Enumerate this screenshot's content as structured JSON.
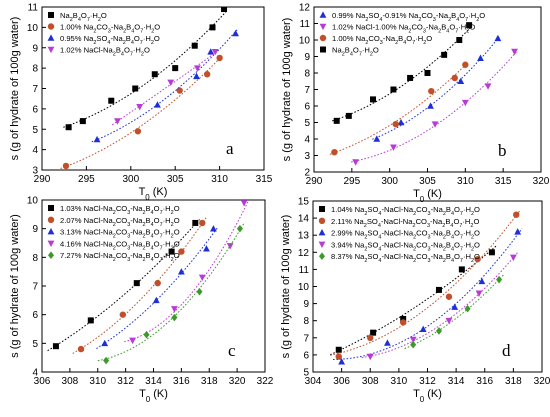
{
  "chart_data": [
    {
      "type": "scatter",
      "panel": "a",
      "xlabel": "T₀ (K)",
      "ylabel": "s (g of hydrate of 100g water)",
      "xlim": [
        290,
        315
      ],
      "ylim": [
        3,
        11
      ],
      "xticks": [
        290,
        295,
        300,
        305,
        310,
        315
      ],
      "yticks": [
        3,
        4,
        5,
        6,
        7,
        8,
        9,
        10,
        11
      ],
      "legend_position": "top-left",
      "series": [
        {
          "name": "Na₂B₄O₇·H₂O",
          "marker": "square",
          "color": "#000000",
          "x": [
            293.0,
            294.6,
            297.8,
            300.5,
            302.7,
            305.0,
            307.2,
            309.2,
            310.5
          ],
          "y": [
            5.1,
            5.4,
            6.4,
            7.0,
            7.7,
            8.0,
            9.1,
            10.0,
            10.9
          ]
        },
        {
          "name": "1.00% Na₂CO₃-Na₂B₄O₇·H₂O",
          "marker": "circle",
          "color": "#c0502a",
          "x": [
            292.7,
            300.8,
            305.5,
            308.6,
            310.0
          ],
          "y": [
            3.2,
            4.9,
            6.9,
            7.7,
            8.5
          ]
        },
        {
          "name": "0.95% Na₂SO₄-Na₂B₄O₇·H₂O",
          "marker": "triangle-up",
          "color": "#1f2fd6",
          "x": [
            296.2,
            303.0,
            307.4,
            309.0,
            311.8
          ],
          "y": [
            4.5,
            6.2,
            7.6,
            8.8,
            9.7
          ]
        },
        {
          "name": "1.02% NaCl-Na₂B₄O₇·H₂O",
          "marker": "triangle-down",
          "color": "#b93bd6",
          "x": [
            298.5,
            301.0,
            304.5,
            307.5,
            309.5
          ],
          "y": [
            5.4,
            6.1,
            7.3,
            8.0,
            8.8
          ]
        }
      ],
      "annotation": "a"
    },
    {
      "type": "scatter",
      "panel": "b",
      "xlabel": "T₀ (K)",
      "ylabel": "s (g of hydrate of 100g water)",
      "xlim": [
        290,
        320
      ],
      "ylim": [
        2,
        12
      ],
      "xticks": [
        290,
        295,
        300,
        305,
        310,
        315,
        320
      ],
      "yticks": [
        2,
        3,
        4,
        5,
        6,
        7,
        8,
        9,
        10,
        11,
        12
      ],
      "legend_position": "top-left",
      "series": [
        {
          "name": "0.99% Na₂SO₄-0.91% Na₂CO₃-Na₂B₄O₇·H₂O",
          "marker": "triangle-up",
          "color": "#1f2fd6",
          "x": [
            298.3,
            301.5,
            305.4,
            309.4,
            312.0,
            314.3
          ],
          "y": [
            4.0,
            5.0,
            6.0,
            7.5,
            8.9,
            10.1
          ]
        },
        {
          "name": "1.02% NaCl-1.00% Na₂CO₃-Na₂B₄O₇·H₂O",
          "marker": "triangle-down",
          "color": "#b93bd6",
          "x": [
            295.5,
            300.5,
            306.0,
            310.0,
            313.0,
            316.5
          ],
          "y": [
            2.6,
            3.5,
            4.9,
            6.2,
            7.2,
            9.3
          ]
        },
        {
          "name": "1.00% Na₂CO₃-Na₂B₄O₇·H₂O",
          "marker": "circle",
          "color": "#c0502a",
          "x": [
            292.7,
            300.8,
            305.5,
            308.6,
            310.0
          ],
          "y": [
            3.2,
            4.9,
            6.9,
            7.7,
            8.5
          ]
        },
        {
          "name": "Na₂B₄O₇·H₂O",
          "marker": "square",
          "color": "#000000",
          "x": [
            293.0,
            294.6,
            297.8,
            300.5,
            302.7,
            305.0,
            307.2,
            309.2,
            310.5
          ],
          "y": [
            5.1,
            5.4,
            6.4,
            7.0,
            7.7,
            8.0,
            9.1,
            10.0,
            10.9
          ]
        }
      ],
      "annotation": "b"
    },
    {
      "type": "scatter",
      "panel": "c",
      "xlabel": "T₀ (K)",
      "ylabel": "s (g of hydrate of 100g water)",
      "xlim": [
        306,
        322
      ],
      "ylim": [
        4,
        10
      ],
      "xticks": [
        306,
        308,
        310,
        312,
        314,
        316,
        318,
        320,
        322
      ],
      "yticks": [
        4,
        5,
        6,
        7,
        8,
        9,
        10
      ],
      "legend_position": "top-left",
      "series": [
        {
          "name": "1.03% NaCl-Na₂CO₃-Na₂B₄O₇·H₂O",
          "marker": "square",
          "color": "#000000",
          "x": [
            307.0,
            309.5,
            312.8,
            315.3,
            317.0
          ],
          "y": [
            4.9,
            5.8,
            7.1,
            8.2,
            9.2
          ]
        },
        {
          "name": "2.07% NaCl-Na₂CO₃-Na₂B₄O₇·H₂O",
          "marker": "circle",
          "color": "#c0502a",
          "x": [
            308.8,
            311.8,
            314.3,
            316.0,
            317.5
          ],
          "y": [
            4.8,
            6.0,
            7.1,
            8.2,
            9.2
          ]
        },
        {
          "name": "3.13% NaCl-Na₂CO₃-Na₂B₄O₇·H₂O",
          "marker": "triangle-up",
          "color": "#1f2fd6",
          "x": [
            310.5,
            314.2,
            316.0,
            317.8,
            318.3
          ],
          "y": [
            5.0,
            6.5,
            7.5,
            8.3,
            9.0
          ]
        },
        {
          "name": "4.16% NaCl-Na₂CO₃-Na₂B₄O₇·H₂O",
          "marker": "triangle-down",
          "color": "#b93bd6",
          "x": [
            312.5,
            315.5,
            317.5,
            319.5,
            320.5
          ],
          "y": [
            5.1,
            6.2,
            7.3,
            8.4,
            9.9
          ]
        },
        {
          "name": "7.27% NaCl-Na₂CO₃-Na₂B₄O₇·H₂O",
          "marker": "diamond",
          "color": "#3c9a2a",
          "x": [
            310.6,
            313.5,
            315.5,
            317.3,
            320.2
          ],
          "y": [
            4.4,
            5.3,
            5.9,
            6.8,
            9.0
          ]
        }
      ],
      "annotation": "c"
    },
    {
      "type": "scatter",
      "panel": "d",
      "xlabel": "T₀ (K)",
      "ylabel": "s (g of hydrate of 100g water)",
      "xlim": [
        304,
        320
      ],
      "ylim": [
        5,
        15
      ],
      "xticks": [
        304,
        306,
        308,
        310,
        312,
        314,
        316,
        318,
        320
      ],
      "yticks": [
        5,
        6,
        7,
        8,
        9,
        10,
        11,
        12,
        13,
        14,
        15
      ],
      "legend_position": "top-left",
      "series": [
        {
          "name": "1.04% Na₂SO₄-NaCl-Na₂CO₃-Na₂B₄O₇·H₂O",
          "marker": "square",
          "color": "#000000",
          "x": [
            305.8,
            308.2,
            310.3,
            312.8,
            314.4,
            316.5
          ],
          "y": [
            6.3,
            7.3,
            8.1,
            9.8,
            11.0,
            12.0
          ]
        },
        {
          "name": "2.11% Na₂SO₄-NaCl-Na₂CO₃-Na₂B₄O₇·H₂O",
          "marker": "circle",
          "color": "#c0502a",
          "x": [
            305.8,
            308.0,
            310.3,
            313.5,
            315.5,
            318.2
          ],
          "y": [
            5.9,
            7.0,
            7.9,
            9.4,
            11.6,
            14.2
          ]
        },
        {
          "name": "2.99% Na₂SO₄-NaCl-Na₂CO₃-Na₂B₄O₇·H₂O",
          "marker": "triangle-up",
          "color": "#1f2fd6",
          "x": [
            306.0,
            309.2,
            311.7,
            313.9,
            315.8,
            318.3
          ],
          "y": [
            5.6,
            6.7,
            7.5,
            8.8,
            10.3,
            13.2
          ]
        },
        {
          "name": "3.94% Na₂SO₄-NaCl-Na₂CO₃-Na₂B₄O₇·H₂O",
          "marker": "triangle-down",
          "color": "#b93bd6",
          "x": [
            308.0,
            311.0,
            313.5,
            315.6,
            318.0
          ],
          "y": [
            5.9,
            6.9,
            8.0,
            9.6,
            11.7
          ]
        },
        {
          "name": "8.37% Na₂SO₄-NaCl-Na₂CO₃-Na₂B₄O₇·H₂O",
          "marker": "diamond",
          "color": "#3c9a2a",
          "x": [
            311.0,
            312.8,
            314.8,
            317.0
          ],
          "y": [
            6.6,
            7.4,
            8.7,
            10.4
          ]
        }
      ],
      "annotation": "d"
    }
  ]
}
